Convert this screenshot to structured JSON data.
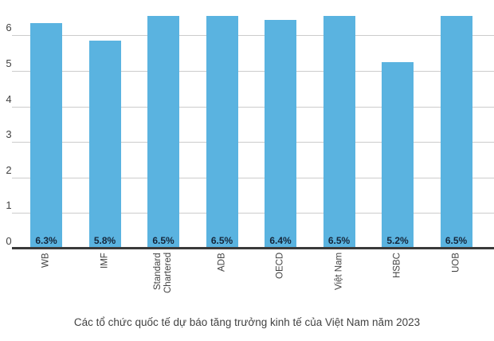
{
  "chart_data": {
    "type": "bar",
    "title": "Các tổ chức quốc tế dự báo tăng trưởng kinh tế của Việt Nam năm 2023",
    "xlabel": "",
    "ylabel": "",
    "categories": [
      "WB",
      "IMF",
      "Standard Chartered",
      "ADB",
      "OECD",
      "Việt Nam",
      "HSBC",
      "UOB"
    ],
    "x_tick_lines": [
      [
        "WB"
      ],
      [
        "IMF"
      ],
      [
        "Standard",
        "Chartered"
      ],
      [
        "ADB"
      ],
      [
        "OECD"
      ],
      [
        "Việt Nam"
      ],
      [
        "HSBC"
      ],
      [
        "UOB"
      ]
    ],
    "values": [
      6.3,
      5.8,
      6.5,
      6.5,
      6.4,
      6.5,
      5.2,
      6.5
    ],
    "bar_labels": [
      "6.3%",
      "5.8%",
      "6.5%",
      "6.5%",
      "6.4%",
      "6.5%",
      "5.2%",
      "6.5%"
    ],
    "y_ticks": [
      0,
      1,
      2,
      3,
      4,
      5,
      6
    ],
    "ylim": [
      0,
      7
    ],
    "grid": true,
    "legend": false,
    "bar_label_position": "inside-bottom",
    "x_tick_rotation_deg": 90,
    "colors": {
      "bar": "#5ab3e0",
      "value_label": "#15263a",
      "axis": "#3a3a3a",
      "gridline": "#cccccc",
      "tick_label": "#424242",
      "title": "#424242",
      "background": "#ffffff"
    }
  }
}
